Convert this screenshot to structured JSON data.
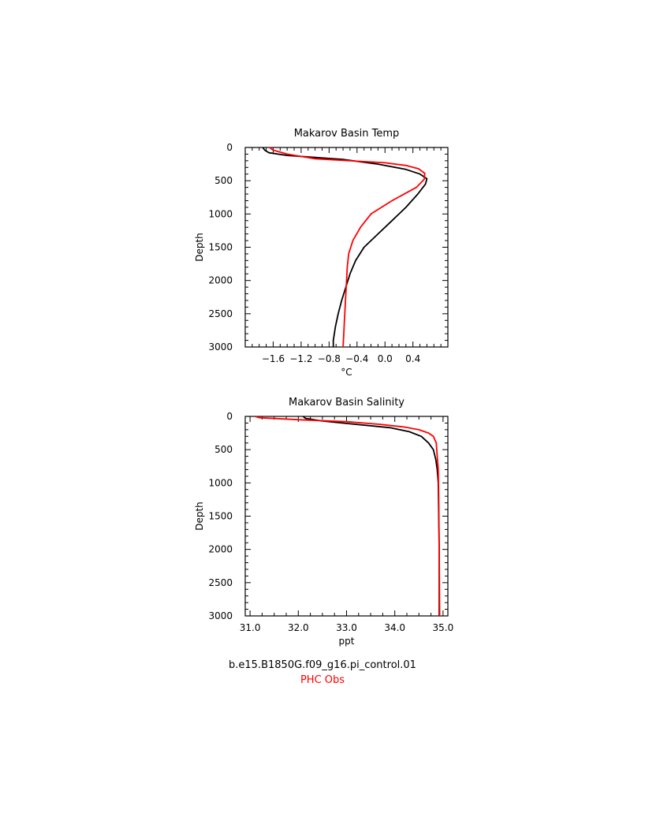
{
  "chart_data": [
    {
      "type": "line",
      "title": "Makarov Basin Temp",
      "xlabel": "°C",
      "ylabel": "Depth",
      "xlim": [
        -2.0,
        0.9
      ],
      "ylim": [
        3000,
        0
      ],
      "xticks": [
        -1.6,
        -1.2,
        -0.8,
        -0.4,
        0.0,
        0.4
      ],
      "xtick_labels": [
        "−1.6",
        "−1.2",
        "−0.8",
        "−0.4",
        "0.0",
        "0.4"
      ],
      "yticks": [
        0,
        500,
        1000,
        1500,
        2000,
        2500,
        3000
      ],
      "ytick_labels": [
        "0",
        "500",
        "1000",
        "1500",
        "2000",
        "2500",
        "3000"
      ],
      "grid": false,
      "series": [
        {
          "name": "b.e15.B1850G.f09_g16.pi_control.01",
          "color": "#000000",
          "points": [
            [
              -1.75,
              0
            ],
            [
              -1.72,
              40
            ],
            [
              -1.66,
              80
            ],
            [
              -1.4,
              120
            ],
            [
              -0.6,
              180
            ],
            [
              -0.1,
              250
            ],
            [
              0.3,
              330
            ],
            [
              0.5,
              400
            ],
            [
              0.6,
              470
            ],
            [
              0.58,
              550
            ],
            [
              0.47,
              700
            ],
            [
              0.3,
              900
            ],
            [
              0.1,
              1100
            ],
            [
              -0.1,
              1300
            ],
            [
              -0.3,
              1500
            ],
            [
              -0.42,
              1700
            ],
            [
              -0.5,
              1900
            ],
            [
              -0.56,
              2100
            ],
            [
              -0.62,
              2300
            ],
            [
              -0.67,
              2500
            ],
            [
              -0.71,
              2700
            ],
            [
              -0.74,
              2900
            ],
            [
              -0.74,
              3000
            ]
          ]
        },
        {
          "name": "PHC Obs",
          "color": "#ff0000",
          "points": [
            [
              -1.65,
              0
            ],
            [
              -1.6,
              40
            ],
            [
              -1.4,
              100
            ],
            [
              -1.0,
              170
            ],
            [
              -0.5,
              200
            ],
            [
              0.0,
              230
            ],
            [
              0.3,
              270
            ],
            [
              0.48,
              320
            ],
            [
              0.57,
              390
            ],
            [
              0.56,
              480
            ],
            [
              0.45,
              600
            ],
            [
              0.1,
              800
            ],
            [
              -0.2,
              1000
            ],
            [
              -0.35,
              1200
            ],
            [
              -0.46,
              1400
            ],
            [
              -0.52,
              1600
            ],
            [
              -0.54,
              1800
            ],
            [
              -0.55,
              2000
            ],
            [
              -0.56,
              2200
            ],
            [
              -0.57,
              2400
            ],
            [
              -0.58,
              2600
            ],
            [
              -0.59,
              2800
            ],
            [
              -0.6,
              3000
            ]
          ]
        }
      ]
    },
    {
      "type": "line",
      "title": "Makarov Basin Salinity",
      "xlabel": "ppt",
      "ylabel": "Depth",
      "xlim": [
        30.9,
        35.1
      ],
      "ylim": [
        3000,
        0
      ],
      "xticks": [
        31.0,
        32.0,
        33.0,
        34.0,
        35.0
      ],
      "xtick_labels": [
        "31.0",
        "32.0",
        "33.0",
        "34.0",
        "35.0"
      ],
      "yticks": [
        0,
        500,
        1000,
        1500,
        2000,
        2500,
        3000
      ],
      "ytick_labels": [
        "0",
        "500",
        "1000",
        "1500",
        "2000",
        "2500",
        "3000"
      ],
      "grid": false,
      "series": [
        {
          "name": "b.e15.B1850G.f09_g16.pi_control.01",
          "color": "#000000",
          "points": [
            [
              32.1,
              0
            ],
            [
              32.15,
              30
            ],
            [
              32.5,
              70
            ],
            [
              33.2,
              120
            ],
            [
              33.9,
              170
            ],
            [
              34.3,
              230
            ],
            [
              34.55,
              300
            ],
            [
              34.7,
              400
            ],
            [
              34.8,
              500
            ],
            [
              34.85,
              650
            ],
            [
              34.88,
              800
            ],
            [
              34.9,
              1000
            ],
            [
              34.91,
              1500
            ],
            [
              34.92,
              2000
            ],
            [
              34.92,
              2500
            ],
            [
              34.92,
              3000
            ]
          ]
        },
        {
          "name": "PHC Obs",
          "color": "#ff0000",
          "points": [
            [
              31.1,
              0
            ],
            [
              31.2,
              20
            ],
            [
              32.0,
              50
            ],
            [
              33.0,
              80
            ],
            [
              33.7,
              120
            ],
            [
              34.2,
              160
            ],
            [
              34.5,
              200
            ],
            [
              34.7,
              250
            ],
            [
              34.8,
              300
            ],
            [
              34.86,
              400
            ],
            [
              34.88,
              600
            ],
            [
              34.9,
              800
            ],
            [
              34.91,
              1200
            ],
            [
              34.92,
              2000
            ],
            [
              34.93,
              3000
            ]
          ]
        }
      ]
    }
  ],
  "legend": {
    "model_label": "b.e15.B1850G.f09_g16.pi_control.01",
    "obs_label": "PHC Obs"
  }
}
